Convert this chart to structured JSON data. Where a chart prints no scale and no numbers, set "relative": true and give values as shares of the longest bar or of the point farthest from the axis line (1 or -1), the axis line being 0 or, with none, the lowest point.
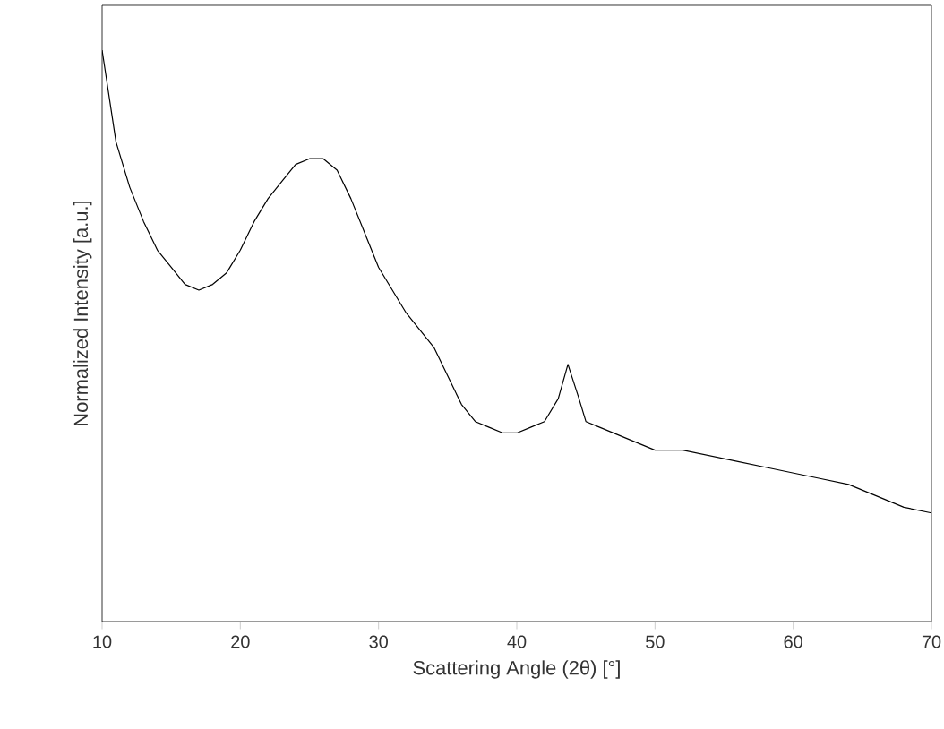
{
  "chart_data": {
    "type": "line",
    "xlabel": "Scattering Angle (2θ) [°]",
    "ylabel": "Normalized Intensity [a.u.]",
    "relative": true,
    "xlim": [
      10,
      70
    ],
    "xticks": [
      10,
      20,
      30,
      40,
      50,
      60,
      70
    ],
    "series": [
      {
        "color": "#000000",
        "x": [
          10,
          11,
          12,
          13,
          14,
          15,
          16,
          17,
          18,
          19,
          20,
          21,
          22,
          23,
          24,
          25,
          26,
          27,
          28,
          29,
          30,
          31,
          32,
          33,
          34,
          35,
          36,
          37,
          38,
          39,
          40,
          41,
          42,
          43,
          43.7,
          44.5,
          45,
          46,
          48,
          50,
          52,
          54,
          56,
          58,
          60,
          62,
          64,
          66,
          68,
          70
        ],
        "values": [
          1.0,
          0.84,
          0.76,
          0.7,
          0.65,
          0.62,
          0.59,
          0.58,
          0.59,
          0.61,
          0.65,
          0.7,
          0.74,
          0.77,
          0.8,
          0.81,
          0.81,
          0.79,
          0.74,
          0.68,
          0.62,
          0.58,
          0.54,
          0.51,
          0.48,
          0.43,
          0.38,
          0.35,
          0.34,
          0.33,
          0.33,
          0.34,
          0.35,
          0.39,
          0.45,
          0.39,
          0.35,
          0.34,
          0.32,
          0.3,
          0.3,
          0.29,
          0.28,
          0.27,
          0.26,
          0.25,
          0.24,
          0.22,
          0.2,
          0.19
        ]
      }
    ]
  }
}
